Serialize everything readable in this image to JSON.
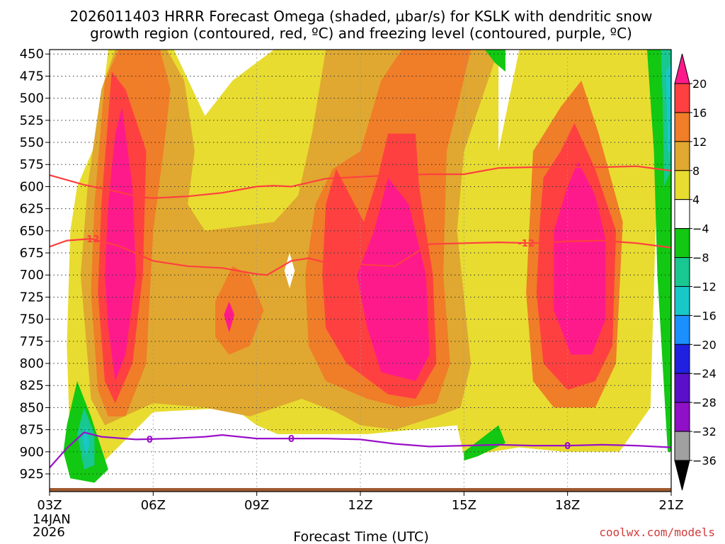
{
  "chart_data": {
    "type": "heatmap",
    "title_line1": "2026011403 HRRR Forecast Omega (shaded, µbar/s) for KSLK with dendritic snow",
    "title_line2": "growth region (contoured, red, ºC) and freezing level (contoured, purple, ºC)",
    "xlabel": "Forecast Time (UTC)",
    "credit": "coolwx.com/models",
    "x_date_line1": "14JAN",
    "x_date_line2": "2026",
    "x_ticks": [
      {
        "hour": 3,
        "label": "03Z"
      },
      {
        "hour": 6,
        "label": "06Z"
      },
      {
        "hour": 9,
        "label": "09Z"
      },
      {
        "hour": 12,
        "label": "12Z"
      },
      {
        "hour": 15,
        "label": "15Z"
      },
      {
        "hour": 18,
        "label": "18Z"
      },
      {
        "hour": 21,
        "label": "21Z"
      }
    ],
    "x_range": [
      3,
      21
    ],
    "y_range": [
      445,
      945
    ],
    "y_ticks": [
      450,
      475,
      500,
      525,
      550,
      575,
      600,
      625,
      650,
      675,
      700,
      725,
      750,
      775,
      800,
      825,
      850,
      875,
      900,
      925
    ],
    "colorbar": {
      "labels": [
        "20",
        "16",
        "12",
        "8",
        "4",
        "−4",
        "−8",
        "−12",
        "−16",
        "−20",
        "−24",
        "−28",
        "−32",
        "−36"
      ],
      "colors": [
        "#ff1a8c",
        "#ff4040",
        "#f07d28",
        "#e0a830",
        "#e8dc30",
        "#ffffff",
        "#12c812",
        "#18c890",
        "#18c8c8",
        "#1a90ff",
        "#2020e0",
        "#5a10c8",
        "#9010c8",
        "#a0a0a0",
        "#000000"
      ]
    },
    "omega_regions": [
      {
        "level": 4,
        "color": "#e8dc30",
        "points": [
          [
            3.8,
            600
          ],
          [
            4.4,
            545
          ],
          [
            4.7,
            445
          ],
          [
            6.6,
            445
          ],
          [
            7.5,
            520
          ],
          [
            8.3,
            480
          ],
          [
            9.5,
            445
          ],
          [
            16.0,
            445
          ],
          [
            16.0,
            560
          ],
          [
            16.6,
            445
          ],
          [
            20.6,
            445
          ],
          [
            20.6,
            580
          ],
          [
            20.4,
            850
          ],
          [
            19.5,
            900
          ],
          [
            17.9,
            900
          ],
          [
            16.6,
            895
          ],
          [
            15.0,
            905
          ],
          [
            14.8,
            870
          ],
          [
            12.2,
            880
          ],
          [
            11.0,
            880
          ],
          [
            9.6,
            880
          ],
          [
            9.0,
            870
          ],
          [
            8.3,
            850
          ],
          [
            6.0,
            855
          ],
          [
            4.6,
            910
          ],
          [
            3.6,
            900
          ],
          [
            3.5,
            780
          ],
          [
            3.6,
            650
          ]
        ]
      },
      {
        "level": 8,
        "color": "#e0a830",
        "points": [
          [
            4.1,
            600
          ],
          [
            4.5,
            490
          ],
          [
            4.9,
            445
          ],
          [
            6.4,
            445
          ],
          [
            6.9,
            480
          ],
          [
            7.2,
            560
          ],
          [
            7.0,
            620
          ],
          [
            7.5,
            650
          ],
          [
            9.5,
            640
          ],
          [
            10.2,
            610
          ],
          [
            10.6,
            540
          ],
          [
            11.0,
            445
          ],
          [
            16.0,
            445
          ],
          [
            15.0,
            560
          ],
          [
            14.8,
            650
          ],
          [
            15.2,
            800
          ],
          [
            14.9,
            850
          ],
          [
            14.2,
            860
          ],
          [
            13.0,
            875
          ],
          [
            12.0,
            870
          ],
          [
            11.3,
            855
          ],
          [
            10.3,
            840
          ],
          [
            8.8,
            860
          ],
          [
            7.5,
            850
          ],
          [
            6.0,
            845
          ],
          [
            4.6,
            870
          ],
          [
            4.2,
            840
          ],
          [
            3.9,
            700
          ]
        ]
      },
      {
        "level": 12,
        "color": "#f07d28",
        "points": [
          [
            4.3,
            620
          ],
          [
            4.6,
            480
          ],
          [
            5.0,
            445
          ],
          [
            6.2,
            445
          ],
          [
            6.5,
            490
          ],
          [
            6.3,
            560
          ],
          [
            6.0,
            650
          ],
          [
            5.8,
            800
          ],
          [
            5.2,
            860
          ],
          [
            4.7,
            860
          ],
          [
            4.4,
            830
          ],
          [
            4.2,
            720
          ]
        ]
      },
      {
        "level": 12,
        "color": "#f07d28",
        "points": [
          [
            10.7,
            620
          ],
          [
            11.2,
            580
          ],
          [
            12.0,
            560
          ],
          [
            12.6,
            480
          ],
          [
            13.2,
            445
          ],
          [
            15.2,
            445
          ],
          [
            14.5,
            560
          ],
          [
            14.4,
            700
          ],
          [
            14.6,
            800
          ],
          [
            14.2,
            845
          ],
          [
            13.2,
            850
          ],
          [
            12.2,
            840
          ],
          [
            11.0,
            820
          ],
          [
            10.5,
            780
          ],
          [
            10.4,
            700
          ]
        ]
      },
      {
        "level": 12,
        "color": "#f07d28",
        "points": [
          [
            16.9,
            640
          ],
          [
            17.0,
            560
          ],
          [
            17.8,
            510
          ],
          [
            18.4,
            480
          ],
          [
            18.9,
            540
          ],
          [
            19.6,
            640
          ],
          [
            19.4,
            800
          ],
          [
            18.8,
            850
          ],
          [
            17.6,
            850
          ],
          [
            17.0,
            820
          ],
          [
            16.8,
            720
          ]
        ]
      },
      {
        "level": 12,
        "color": "#f07d28",
        "points": [
          [
            7.8,
            730
          ],
          [
            8.3,
            690
          ],
          [
            8.8,
            700
          ],
          [
            9.2,
            740
          ],
          [
            8.8,
            780
          ],
          [
            8.2,
            790
          ],
          [
            7.8,
            770
          ]
        ]
      },
      {
        "level": 16,
        "color": "#ff4040",
        "points": [
          [
            4.5,
            620
          ],
          [
            4.8,
            470
          ],
          [
            5.2,
            490
          ],
          [
            5.8,
            560
          ],
          [
            5.7,
            700
          ],
          [
            5.4,
            800
          ],
          [
            4.9,
            845
          ],
          [
            4.6,
            820
          ],
          [
            4.4,
            720
          ]
        ]
      },
      {
        "level": 16,
        "color": "#ff4040",
        "points": [
          [
            11.0,
            620
          ],
          [
            11.3,
            580
          ],
          [
            12.1,
            640
          ],
          [
            12.5,
            590
          ],
          [
            12.8,
            540
          ],
          [
            13.6,
            540
          ],
          [
            13.7,
            600
          ],
          [
            14.1,
            700
          ],
          [
            14.2,
            800
          ],
          [
            13.6,
            840
          ],
          [
            12.8,
            835
          ],
          [
            11.6,
            800
          ],
          [
            11.0,
            760
          ],
          [
            10.9,
            700
          ]
        ]
      },
      {
        "level": 16,
        "color": "#ff4040",
        "points": [
          [
            17.2,
            640
          ],
          [
            17.3,
            590
          ],
          [
            17.8,
            560
          ],
          [
            18.2,
            528
          ],
          [
            18.8,
            580
          ],
          [
            19.4,
            650
          ],
          [
            19.3,
            780
          ],
          [
            18.8,
            820
          ],
          [
            18.0,
            830
          ],
          [
            17.3,
            800
          ],
          [
            17.1,
            720
          ]
        ]
      },
      {
        "level": 20,
        "color": "#ff1a8c",
        "points": [
          [
            4.7,
            620
          ],
          [
            4.9,
            540
          ],
          [
            5.1,
            510
          ],
          [
            5.4,
            600
          ],
          [
            5.5,
            700
          ],
          [
            5.2,
            790
          ],
          [
            4.9,
            820
          ],
          [
            4.7,
            760
          ],
          [
            4.6,
            700
          ]
        ]
      },
      {
        "level": 20,
        "color": "#ff1a8c",
        "points": [
          [
            11.9,
            700
          ],
          [
            12.4,
            650
          ],
          [
            12.8,
            590
          ],
          [
            13.4,
            620
          ],
          [
            13.9,
            700
          ],
          [
            14.0,
            790
          ],
          [
            13.6,
            820
          ],
          [
            12.6,
            810
          ],
          [
            12.2,
            760
          ]
        ]
      },
      {
        "level": 20,
        "color": "#ff1a8c",
        "points": [
          [
            17.6,
            650
          ],
          [
            18.0,
            600
          ],
          [
            18.3,
            572
          ],
          [
            18.8,
            610
          ],
          [
            19.1,
            660
          ],
          [
            19.1,
            750
          ],
          [
            18.7,
            790
          ],
          [
            18.1,
            790
          ],
          [
            17.6,
            740
          ]
        ]
      },
      {
        "level": 20,
        "color": "#ff1a8c",
        "points": [
          [
            8.05,
            745
          ],
          [
            8.2,
            730
          ],
          [
            8.35,
            745
          ],
          [
            8.2,
            765
          ]
        ]
      },
      {
        "level": 4,
        "color": "#ffffff",
        "points": [
          [
            9.8,
            695
          ],
          [
            9.95,
            675
          ],
          [
            10.1,
            695
          ],
          [
            9.95,
            715
          ]
        ]
      },
      {
        "level": -4,
        "color": "#12c812",
        "points": [
          [
            3.5,
            870
          ],
          [
            3.8,
            820
          ],
          [
            4.2,
            860
          ],
          [
            4.7,
            920
          ],
          [
            4.3,
            935
          ],
          [
            3.6,
            930
          ],
          [
            3.4,
            900
          ]
        ]
      },
      {
        "level": -8,
        "color": "#18c890",
        "points": [
          [
            3.8,
            880
          ],
          [
            4.0,
            850
          ],
          [
            4.3,
            880
          ],
          [
            4.3,
            915
          ],
          [
            4.0,
            920
          ]
        ]
      },
      {
        "level": -12,
        "color": "#18c8c8",
        "points": [
          [
            3.95,
            885
          ],
          [
            4.05,
            870
          ],
          [
            4.15,
            890
          ],
          [
            4.05,
            905
          ]
        ]
      },
      {
        "level": -4,
        "color": "#12c812",
        "points": [
          [
            15.0,
            900
          ],
          [
            15.5,
            885
          ],
          [
            16.0,
            870
          ],
          [
            16.2,
            890
          ],
          [
            15.4,
            905
          ],
          [
            15.0,
            910
          ]
        ]
      },
      {
        "level": -4,
        "color": "#12c812",
        "points": [
          [
            15.6,
            445
          ],
          [
            16.2,
            445
          ],
          [
            16.2,
            470
          ],
          [
            15.9,
            460
          ]
        ]
      },
      {
        "level": -4,
        "color": "#12c812",
        "points": [
          [
            20.3,
            445
          ],
          [
            21.0,
            445
          ],
          [
            21.0,
            900
          ],
          [
            20.9,
            900
          ],
          [
            20.6,
            700
          ],
          [
            20.5,
            560
          ]
        ]
      },
      {
        "level": -8,
        "color": "#18c890",
        "points": [
          [
            20.7,
            445
          ],
          [
            21.0,
            445
          ],
          [
            21.0,
            580
          ],
          [
            20.8,
            600
          ],
          [
            20.75,
            500
          ]
        ]
      },
      {
        "level": -12,
        "color": "#18c8c8",
        "points": [
          [
            20.85,
            470
          ],
          [
            21.0,
            460
          ],
          [
            21.0,
            560
          ],
          [
            20.9,
            560
          ]
        ]
      }
    ],
    "dgz_upper_line": {
      "name": "-18 dendritic upper",
      "color": "#ff4040",
      "x": [
        3.0,
        4.0,
        5.0,
        5.6,
        6.0,
        7.0,
        8.0,
        9.0,
        9.5,
        10.0,
        11.0,
        12.0,
        13.0,
        14.0,
        15.0,
        16.0,
        17.0,
        18.0,
        19.0,
        20.0,
        21.0
      ],
      "y": [
        587,
        598,
        606,
        612,
        613,
        611,
        607,
        600,
        599,
        600,
        591,
        589,
        587,
        586,
        586,
        579,
        578,
        578,
        578,
        577,
        582
      ]
    },
    "dgz_lower_line": {
      "name": "-12",
      "label": "-12",
      "label_x": [
        4.2,
        16.8
      ],
      "color": "#ff4040",
      "x": [
        3.0,
        3.5,
        4.2,
        5.0,
        6.0,
        7.0,
        8.0,
        9.0,
        9.3,
        10.0,
        10.5,
        11.0,
        12.0,
        13.0,
        14.0,
        15.0,
        16.0,
        17.0,
        18.0,
        19.0,
        20.0,
        21.0
      ],
      "y": [
        668,
        661,
        659,
        667,
        684,
        690,
        692,
        699,
        700,
        684,
        681,
        686,
        688,
        690,
        665,
        664,
        663,
        664,
        662,
        661,
        664,
        669
      ]
    },
    "freezing_line": {
      "name": "0",
      "label": "0",
      "label_x": [
        5.9,
        10.0,
        18.0
      ],
      "color": "#9a10c8",
      "x": [
        3.0,
        3.5,
        4.0,
        4.5,
        5.5,
        6.5,
        7.5,
        8.0,
        9.0,
        10.0,
        11.0,
        12.0,
        13.0,
        14.0,
        15.0,
        16.0,
        17.0,
        18.0,
        19.0,
        20.0,
        21.0
      ],
      "y": [
        918,
        896,
        878,
        883,
        886,
        885,
        883,
        881,
        885,
        885,
        885,
        886,
        891,
        894,
        893,
        892,
        893,
        893,
        892,
        893,
        895
      ]
    },
    "terrain_color": "#a05a30"
  }
}
